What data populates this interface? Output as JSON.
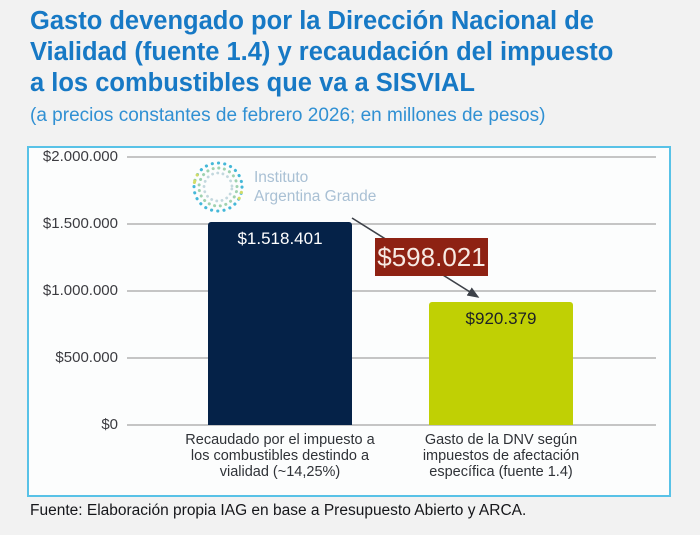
{
  "header": {
    "title": "Gasto devengado por la Dirección Nacional de Vialidad (fuente 1.4) y recaudación del impuesto a los combustibles que va a SISVIAL",
    "title_lines": [
      "Gasto devengado por la Dirección Nacional de",
      "Vialidad (fuente 1.4) y recaudación del impuesto",
      "a los combustibles que va a SISVIAL"
    ],
    "subtitle": "(a precios constantes de febrero 2026; en millones de pesos)"
  },
  "logo": {
    "name": "Instituto Argentina Grande",
    "line1": "Instituto",
    "line2": "Argentina Grande"
  },
  "chart_data": {
    "type": "bar",
    "title": "Gasto devengado por la Dirección Nacional de Vialidad (fuente 1.4) y recaudación del impuesto a los combustibles que va a SISVIAL",
    "subtitle": "(a precios constantes de febrero 2026; en millones de pesos)",
    "categories": [
      "Recaudado por el impuesto a los combustibles destindo a vialidad (~14,25%)",
      "Gasto de la DNV según impuestos de afectación específica (fuente 1.4)"
    ],
    "category_lines": [
      [
        "Recaudado por el impuesto a",
        "los combustibles destindo a",
        "vialidad (~14,25%)"
      ],
      [
        "Gasto de la DNV según",
        "impuestos de afectación",
        "específica (fuente 1.4)"
      ]
    ],
    "values": [
      1518401,
      920379
    ],
    "value_labels": [
      "$1.518.401",
      "$920.379"
    ],
    "difference": {
      "value": 598021,
      "label": "$598.021"
    },
    "y_axis": {
      "ticks": [
        "$2.000.000",
        "$1.500.000",
        "$1.000.000",
        "$500.000",
        "$0"
      ],
      "range": [
        0,
        2000000
      ]
    },
    "grid": true,
    "legend": false,
    "colors": {
      "bar1": "#052248",
      "bar2": "#c0d004",
      "difference_bg": "#8e2213",
      "difference_text": "#f7eae3",
      "title": "#1779c5",
      "subtitle": "#3090d3",
      "panel_border": "#58c2e7",
      "gridline": "#c5c5c5"
    }
  },
  "footer": {
    "source": "Fuente: Elaboración propia IAG en base a Presupuesto Abierto y ARCA."
  }
}
